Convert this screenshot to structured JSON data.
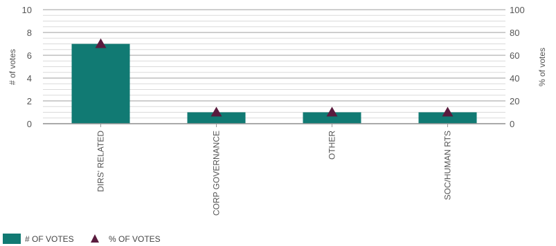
{
  "chart_data": {
    "type": "bar",
    "categories": [
      "DIRS' RELATED",
      "CORP GOVERNANCE",
      "OTHER",
      "SOC/HUMAN RTS"
    ],
    "series": [
      {
        "name": "# OF VOTES",
        "type": "bar",
        "axis": "left",
        "values": [
          7,
          1,
          1,
          1
        ]
      },
      {
        "name": "% OF VOTES",
        "type": "marker",
        "axis": "right",
        "values": [
          70,
          10,
          10,
          10
        ]
      }
    ],
    "ylabel": "# of votes",
    "y2label": "% of votes",
    "ylim": [
      0,
      10
    ],
    "y2lim": [
      0,
      100
    ],
    "yticks": [
      0,
      2,
      4,
      6,
      8,
      10
    ],
    "y2ticks": [
      0,
      20,
      40,
      60,
      80,
      100
    ],
    "grid": true,
    "legend_position": "bottom-left",
    "colors": {
      "bar": "#117A73",
      "marker": "#5A1B3E",
      "grid": "#C9C9C9",
      "axis": "#999999"
    }
  }
}
